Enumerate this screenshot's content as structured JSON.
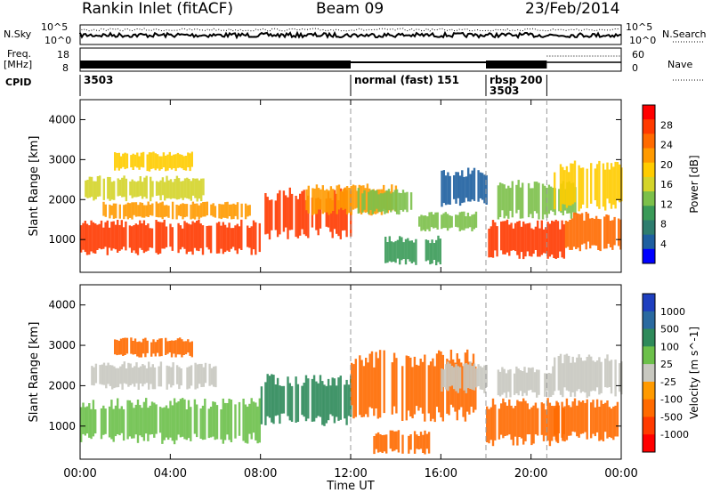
{
  "header": {
    "title": "Rankin Inlet (fitACF)",
    "beam": "Beam 09",
    "date": "23/Feb/2014"
  },
  "summary_panels": {
    "nsky_label": "N.Sky",
    "nsearch_label": "N.Search",
    "freq_label_top": "Freq.",
    "freq_label_unit": "[MHz]",
    "nave_label": "Nave",
    "cpid_label": "CPID",
    "noise_ticks_left": [
      "10^5",
      "10^0"
    ],
    "noise_ticks_right": [
      "10^5",
      "10^0"
    ],
    "freq_ticks": [
      "18",
      "8"
    ],
    "nave_ticks": [
      "60",
      "0"
    ],
    "cpid_segments": [
      {
        "start_hour": 0,
        "end_hour": 12,
        "label": "3503"
      },
      {
        "start_hour": 12,
        "end_hour": 18,
        "label": "normal (fast) 151"
      },
      {
        "start_hour": 18,
        "end_hour": 20.7,
        "label": "rbsp 200"
      },
      {
        "start_hour": 18,
        "end_hour": 20.7,
        "label": "3503"
      }
    ]
  },
  "colorbars": {
    "power": {
      "label": "Power [dB]",
      "ticks": [
        "28",
        "24",
        "20",
        "16",
        "12",
        "8",
        "4"
      ],
      "colors": [
        "#ff0000",
        "#ff3a00",
        "#ff6a00",
        "#ff9a00",
        "#ffcc00",
        "#d4d42a",
        "#7cc04a",
        "#3a9a58",
        "#2e7d6e",
        "#1e5fa0",
        "#0000ff"
      ]
    },
    "velocity": {
      "label": "Velocity [m s^-1]",
      "ticks": [
        "1000",
        "500",
        "100",
        "25",
        "-25",
        "-100",
        "-500",
        "-1000"
      ],
      "colors": [
        "#1e3fbf",
        "#2a6aa0",
        "#2e8a5a",
        "#6cc04a",
        "#c8c8c0",
        "#ff9a00",
        "#ff6a00",
        "#ff3a00",
        "#ff0000"
      ]
    }
  },
  "chart_data": [
    {
      "type": "heatmap",
      "panel": "power",
      "ylabel": "Slant Range [km]",
      "xlabel": "",
      "x_ticks": [
        "00:00",
        "04:00",
        "08:00",
        "12:00",
        "16:00",
        "20:00",
        "00:00"
      ],
      "y_ticks": [
        1000,
        2000,
        3000,
        4000
      ],
      "xlim_hours": [
        0,
        24
      ],
      "ylim_km": [
        180,
        4500
      ],
      "cells": [
        {
          "t0": 0.0,
          "t1": 8.0,
          "r0": 600,
          "r1": 1500,
          "v": 28
        },
        {
          "t0": 1.0,
          "t1": 7.5,
          "r0": 1500,
          "r1": 1950,
          "v": 22
        },
        {
          "t0": 0.2,
          "t1": 5.5,
          "r0": 1950,
          "r1": 2600,
          "v": 16
        },
        {
          "t0": 1.5,
          "t1": 5.0,
          "r0": 2700,
          "r1": 3200,
          "v": 18
        },
        {
          "t0": 8.0,
          "t1": 12.0,
          "r0": 1000,
          "r1": 2300,
          "v": 26
        },
        {
          "t0": 10.0,
          "t1": 14.0,
          "r0": 1600,
          "r1": 2400,
          "v": 22
        },
        {
          "t0": 12.3,
          "t1": 14.7,
          "r0": 1600,
          "r1": 2300,
          "v": 14
        },
        {
          "t0": 13.5,
          "t1": 16.0,
          "r0": 350,
          "r1": 1100,
          "v": 10
        },
        {
          "t0": 15.0,
          "t1": 17.6,
          "r0": 1200,
          "r1": 1700,
          "v": 12
        },
        {
          "t0": 16.0,
          "t1": 18.0,
          "r0": 1800,
          "r1": 2800,
          "v": 6
        },
        {
          "t0": 18.0,
          "t1": 21.5,
          "r0": 500,
          "r1": 1500,
          "v": 27
        },
        {
          "t0": 18.5,
          "t1": 22.0,
          "r0": 1500,
          "r1": 2500,
          "v": 14
        },
        {
          "t0": 21.5,
          "t1": 24.0,
          "r0": 700,
          "r1": 1700,
          "v": 24
        },
        {
          "t0": 21.0,
          "t1": 24.0,
          "r0": 1700,
          "r1": 3000,
          "v": 18
        }
      ]
    },
    {
      "type": "heatmap",
      "panel": "velocity",
      "ylabel": "Slant Range [km]",
      "xlabel": "Time UT",
      "x_ticks": [
        "00:00",
        "04:00",
        "08:00",
        "12:00",
        "16:00",
        "20:00",
        "00:00"
      ],
      "y_ticks": [
        1000,
        2000,
        3000,
        4000
      ],
      "xlim_hours": [
        0,
        24
      ],
      "ylim_km": [
        180,
        4500
      ],
      "cells": [
        {
          "t0": 0.0,
          "t1": 8.0,
          "r0": 550,
          "r1": 1700,
          "v": 80
        },
        {
          "t0": 0.3,
          "t1": 6.0,
          "r0": 1900,
          "r1": 2600,
          "v": 0
        },
        {
          "t0": 1.5,
          "t1": 5.0,
          "r0": 2700,
          "r1": 3200,
          "v": -150
        },
        {
          "t0": 8.0,
          "t1": 12.0,
          "r0": 1000,
          "r1": 2300,
          "v": 200
        },
        {
          "t0": 12.0,
          "t1": 17.5,
          "r0": 1100,
          "r1": 2900,
          "v": -300
        },
        {
          "t0": 13.0,
          "t1": 15.5,
          "r0": 300,
          "r1": 900,
          "v": -150
        },
        {
          "t0": 16.0,
          "t1": 18.0,
          "r0": 1800,
          "r1": 2600,
          "v": 0
        },
        {
          "t0": 18.0,
          "t1": 21.5,
          "r0": 500,
          "r1": 1700,
          "v": -500
        },
        {
          "t0": 18.5,
          "t1": 21.0,
          "r0": 1700,
          "r1": 2500,
          "v": 0
        },
        {
          "t0": 21.0,
          "t1": 24.0,
          "r0": 600,
          "r1": 1700,
          "v": -400
        },
        {
          "t0": 21.0,
          "t1": 24.0,
          "r0": 1700,
          "r1": 2800,
          "v": 0
        }
      ]
    }
  ]
}
